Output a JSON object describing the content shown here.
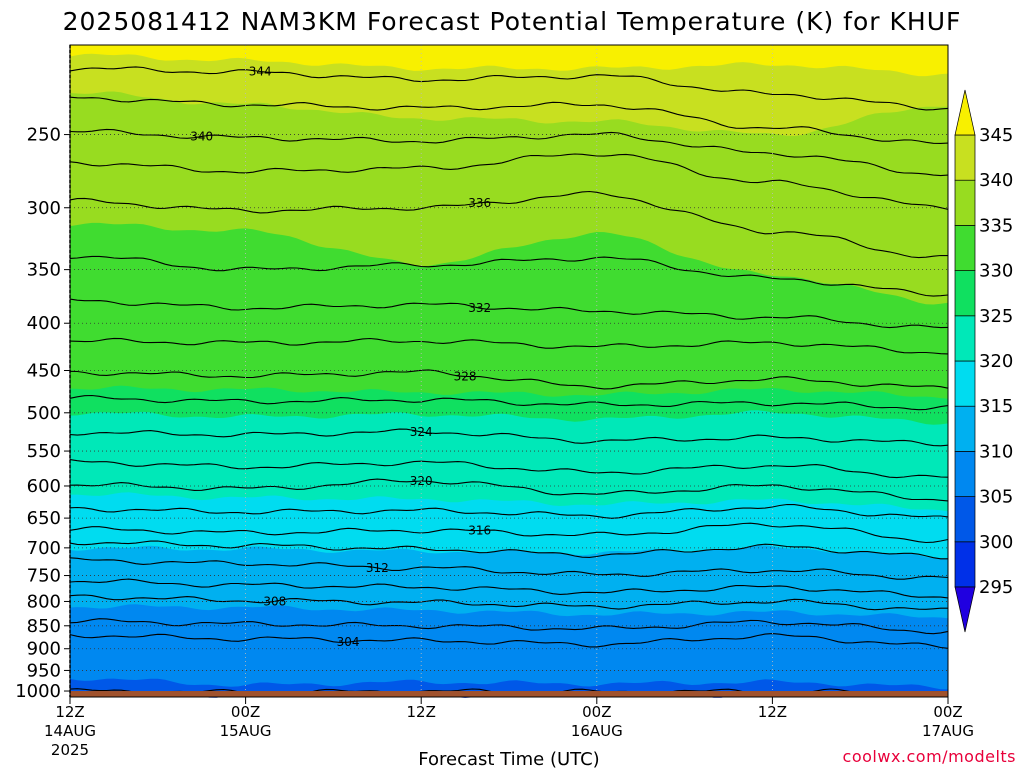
{
  "title": "2025081412 NAM3KM Forecast Potential Temperature (K) for KHUF",
  "credit": "coolwx.com/modelts",
  "colors": {
    "ground": "#a0522d",
    "contour": "#000000",
    "credit": "#e8003a"
  },
  "chart_data": {
    "type": "heatmap",
    "title": "2025081412 NAM3KM Forecast Potential Temperature (K) for KHUF",
    "xlabel": "Forecast Time (UTC)",
    "ylabel": "",
    "y_scale": "log",
    "y_inverted": true,
    "ylim": [
      1015,
      200
    ],
    "xlim": [
      0,
      60
    ],
    "x_unit": "hours from 2025-08-14 12Z",
    "x_ticks": [
      {
        "hour": 0,
        "line1": "12Z",
        "line2": "14AUG",
        "line3": "2025"
      },
      {
        "hour": 12,
        "line1": "00Z",
        "line2": "15AUG",
        "line3": ""
      },
      {
        "hour": 24,
        "line1": "12Z",
        "line2": "",
        "line3": ""
      },
      {
        "hour": 36,
        "line1": "00Z",
        "line2": "16AUG",
        "line3": ""
      },
      {
        "hour": 48,
        "line1": "12Z",
        "line2": "",
        "line3": ""
      },
      {
        "hour": 60,
        "line1": "00Z",
        "line2": "17AUG",
        "line3": ""
      }
    ],
    "y_ticks": [
      250,
      300,
      350,
      400,
      450,
      500,
      550,
      600,
      650,
      700,
      750,
      800,
      850,
      900,
      950,
      1000
    ],
    "y_tick_labels": [
      "250",
      "300",
      "350",
      "400",
      "450",
      "500",
      "550",
      "600",
      "650",
      "700",
      "750",
      "800",
      "850",
      "900",
      "950",
      "1000"
    ],
    "colorbar": {
      "levels": [
        295,
        300,
        305,
        310,
        315,
        320,
        325,
        330,
        335,
        340,
        345
      ],
      "labels": [
        "295",
        "300",
        "305",
        "310",
        "315",
        "320",
        "325",
        "330",
        "335",
        "340",
        "345"
      ],
      "colors": [
        "#2000e0",
        "#0030e8",
        "#0058e8",
        "#0088f0",
        "#00b0f0",
        "#00dcf0",
        "#00e8b8",
        "#10e060",
        "#40dc30",
        "#98dc20",
        "#c8e020",
        "#f8f000"
      ],
      "extend": "both"
    },
    "bands": [
      {
        "value": 300,
        "p": [
          1010,
          1010,
          1010,
          1010,
          1010,
          1010
        ]
      },
      {
        "value": 305,
        "p": [
          968,
          985,
          978,
          982,
          978,
          990
        ]
      },
      {
        "value": 310,
        "p": [
          810,
          812,
          818,
          826,
          822,
          832
        ]
      },
      {
        "value": 315,
        "p": [
          700,
          702,
          706,
          708,
          700,
          715
        ]
      },
      {
        "value": 320,
        "p": [
          612,
          618,
          620,
          628,
          622,
          636
        ]
      },
      {
        "value": 325,
        "p": [
          500,
          505,
          502,
          508,
          500,
          512
        ]
      },
      {
        "value": 330,
        "p": [
          470,
          472,
          475,
          478,
          472,
          480
        ]
      },
      {
        "value": 335,
        "p": [
          312,
          318,
          345,
          320,
          355,
          380
        ]
      },
      {
        "value": 340,
        "p": [
          225,
          232,
          240,
          242,
          250,
          232
        ]
      },
      {
        "value": 345,
        "p": [
          205,
          208,
          212,
          212,
          210,
          215
        ]
      }
    ],
    "contours": [
      {
        "value": 302,
        "label": "",
        "p": [
          1000,
          1003,
          1001,
          1002,
          1001,
          1005
        ]
      },
      {
        "value": 304,
        "label": "304",
        "p": [
          870,
          878,
          882,
          890,
          872,
          895
        ]
      },
      {
        "value": 306,
        "label": "",
        "p": [
          840,
          846,
          850,
          856,
          842,
          862
        ]
      },
      {
        "value": 308,
        "label": "308",
        "p": [
          790,
          798,
          802,
          810,
          800,
          818
        ]
      },
      {
        "value": 310,
        "label": "",
        "p": [
          760,
          768,
          772,
          782,
          772,
          790
        ]
      },
      {
        "value": 312,
        "label": "312",
        "p": [
          722,
          728,
          736,
          748,
          740,
          755
        ]
      },
      {
        "value": 314,
        "label": "",
        "p": [
          690,
          696,
          702,
          712,
          698,
          716
        ]
      },
      {
        "value": 316,
        "label": "316",
        "p": [
          668,
          674,
          670,
          678,
          660,
          688
        ]
      },
      {
        "value": 318,
        "label": "",
        "p": [
          635,
          640,
          638,
          646,
          632,
          650
        ]
      },
      {
        "value": 320,
        "label": "320",
        "p": [
          598,
          604,
          592,
          612,
          600,
          620
        ]
      },
      {
        "value": 322,
        "label": "",
        "p": [
          565,
          572,
          566,
          580,
          570,
          588
        ]
      },
      {
        "value": 324,
        "label": "324",
        "p": [
          525,
          528,
          524,
          536,
          532,
          540
        ]
      },
      {
        "value": 326,
        "label": "",
        "p": [
          482,
          486,
          484,
          490,
          488,
          494
        ]
      },
      {
        "value": 328,
        "label": "328",
        "p": [
          452,
          456,
          452,
          468,
          460,
          470
        ]
      },
      {
        "value": 330,
        "label": "",
        "p": [
          418,
          420,
          418,
          424,
          420,
          430
        ]
      },
      {
        "value": 332,
        "label": "332",
        "p": [
          378,
          385,
          382,
          388,
          394,
          405
        ]
      },
      {
        "value": 334,
        "label": "",
        "p": [
          338,
          350,
          346,
          340,
          358,
          372
        ]
      },
      {
        "value": 336,
        "label": "336",
        "p": [
          295,
          302,
          300,
          290,
          318,
          340
        ]
      },
      {
        "value": 338,
        "label": "",
        "p": [
          268,
          274,
          272,
          262,
          282,
          300
        ]
      },
      {
        "value": 340,
        "label": "340",
        "p": [
          248,
          252,
          254,
          250,
          262,
          276
        ]
      },
      {
        "value": 342,
        "label": "",
        "p": [
          228,
          232,
          234,
          232,
          246,
          256
        ]
      },
      {
        "value": 344,
        "label": "344",
        "p": [
          212,
          214,
          218,
          216,
          226,
          234
        ]
      }
    ],
    "label_hours": {
      "344": 13,
      "340": 9,
      "336": 28,
      "332": 28,
      "328": 27,
      "324": 24,
      "320": 24,
      "316": 28,
      "312": 21,
      "308": 14,
      "304": 19
    }
  }
}
